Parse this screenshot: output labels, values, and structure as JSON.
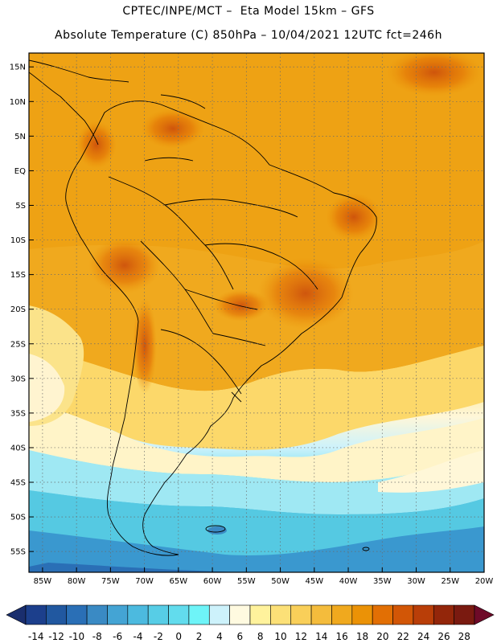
{
  "header": {
    "line1": "CPTEC/INPE/MCT –  Eta Model 15km – GFS",
    "line2": "Absolute Temperature (C) 850hPa – 10/04/2021 12UTC fct=246h"
  },
  "axes": {
    "lat_labels": [
      "15N",
      "10N",
      "5N",
      "EQ",
      "5S",
      "10S",
      "15S",
      "20S",
      "25S",
      "30S",
      "35S",
      "40S",
      "45S",
      "50S",
      "55S"
    ],
    "lon_labels": [
      "85W",
      "80W",
      "75W",
      "70W",
      "65W",
      "60W",
      "55W",
      "50W",
      "45W",
      "40W",
      "35W",
      "30W",
      "25W",
      "20W"
    ]
  },
  "colorbar": {
    "labels": [
      "-14",
      "-12",
      "-10",
      "-8",
      "-6",
      "-4",
      "-2",
      "0",
      "2",
      "4",
      "6",
      "8",
      "10",
      "12",
      "14",
      "16",
      "18",
      "20",
      "22",
      "24",
      "26",
      "28"
    ],
    "colors": [
      "#1c3f8c",
      "#2158a0",
      "#2a6fb6",
      "#3a8ac4",
      "#44a4d4",
      "#4cbadf",
      "#57cde6",
      "#62dced",
      "#6ef4f8",
      "#cdf2fb",
      "#fffae0",
      "#fff29c",
      "#fce077",
      "#f9cf59",
      "#f4bc3c",
      "#f0a91e",
      "#eb9206",
      "#e26f04",
      "#d25606",
      "#b93e08",
      "#93260a",
      "#7a1a10"
    ],
    "low_arrow_color": "#1a2e6e",
    "high_arrow_color": "#6e0a28"
  }
}
